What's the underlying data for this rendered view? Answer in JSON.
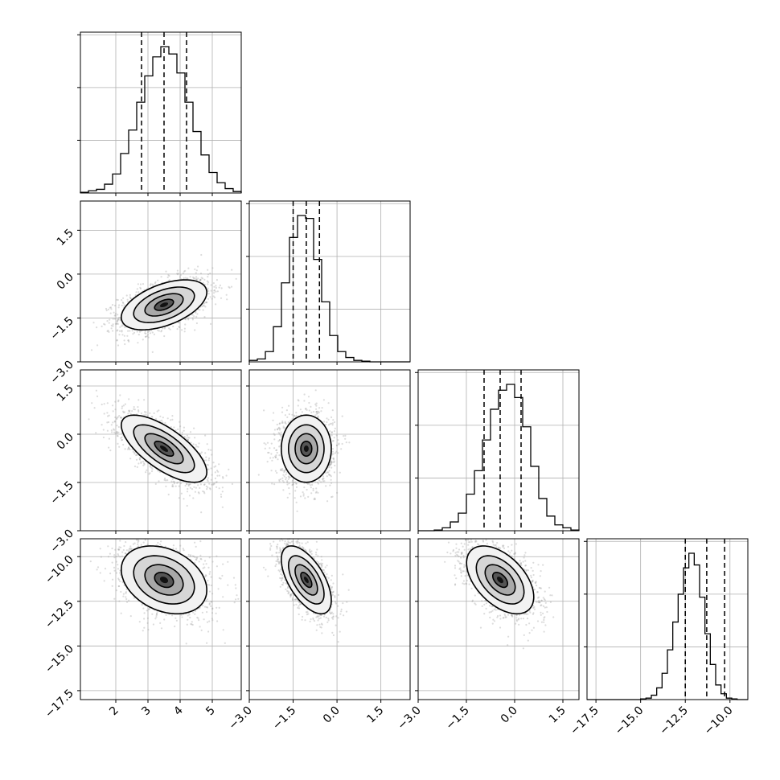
{
  "chart_data": {
    "type": "corner",
    "grid": true,
    "parameters": [
      {
        "range": [
          0.9,
          5.9
        ],
        "ticks": [
          2,
          3,
          4,
          5
        ],
        "tick_labels": [
          "2",
          "3",
          "4",
          "5"
        ],
        "quantiles": [
          2.8,
          3.5,
          4.2
        ],
        "mean": 3.5,
        "sd": 0.7,
        "hist": [
          0.005,
          0.015,
          0.025,
          0.06,
          0.13,
          0.27,
          0.43,
          0.62,
          0.8,
          0.93,
          1.0,
          0.95,
          0.82,
          0.62,
          0.42,
          0.26,
          0.14,
          0.07,
          0.03,
          0.01
        ]
      },
      {
        "range": [
          -3.0,
          2.5
        ],
        "ticks": [
          -3.0,
          -1.5,
          0.0,
          1.5
        ],
        "tick_labels": [
          "−3.0",
          "−1.5",
          "0.0",
          "1.5"
        ],
        "quantiles": [
          -1.5,
          -1.05,
          -0.6
        ],
        "mean": -1.05,
        "sd": 0.45,
        "hist": [
          0.01,
          0.02,
          0.07,
          0.24,
          0.54,
          0.85,
          1.0,
          0.98,
          0.7,
          0.41,
          0.18,
          0.07,
          0.03,
          0.01,
          0.005,
          0,
          0,
          0,
          0,
          0
        ]
      },
      {
        "range": [
          -3.0,
          2.0
        ],
        "ticks": [
          -3.0,
          -1.5,
          0.0,
          1.5
        ],
        "tick_labels": [
          "−3.0",
          "−1.5",
          "0.0",
          "1.5"
        ],
        "quantiles": [
          -0.95,
          -0.45,
          0.2
        ],
        "mean": -0.45,
        "sd": 0.55,
        "hist": [
          0,
          0,
          0.005,
          0.02,
          0.06,
          0.12,
          0.25,
          0.41,
          0.62,
          0.83,
          0.96,
          1.0,
          0.91,
          0.71,
          0.44,
          0.22,
          0.1,
          0.04,
          0.02,
          0.005
        ]
      },
      {
        "range": [
          -18.0,
          -9.0
        ],
        "ticks": [
          -17.5,
          -15.0,
          -12.5,
          -10.0
        ],
        "tick_labels": [
          "−17.5",
          "−15.0",
          "−12.5",
          "−10.0"
        ],
        "quantiles": [
          -12.5,
          -11.3,
          -10.3
        ],
        "mean": -11.3,
        "sd": 1.0,
        "hist": [
          0,
          0,
          0,
          0,
          0,
          0,
          0,
          0,
          0,
          0,
          0.005,
          0.01,
          0.03,
          0.08,
          0.18,
          0.34,
          0.53,
          0.72,
          0.9,
          1.0,
          0.92,
          0.7,
          0.45,
          0.24,
          0.1,
          0.04,
          0.01,
          0.005,
          0,
          0
        ]
      }
    ],
    "correlations": {
      "1,0": 0.5,
      "2,0": -0.7,
      "2,1": 0.0,
      "3,0": -0.3,
      "3,1": -0.6,
      "3,2": -0.5
    },
    "hist_yticks": 3,
    "hist_ytick_labels": [
      "",
      "",
      ""
    ]
  }
}
